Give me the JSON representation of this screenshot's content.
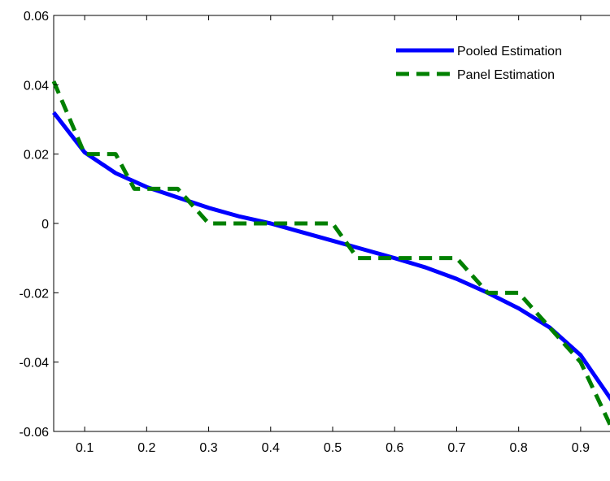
{
  "chart_data": {
    "type": "line",
    "title": "",
    "xlabel": "",
    "ylabel": "",
    "xlim": [
      0.05,
      0.95
    ],
    "ylim": [
      -0.06,
      0.06
    ],
    "x_ticks": [
      0.1,
      0.2,
      0.3,
      0.4,
      0.5,
      0.6,
      0.7,
      0.8,
      0.9
    ],
    "x_tick_labels": [
      "0.1",
      "0.2",
      "0.3",
      "0.4",
      "0.5",
      "0.6",
      "0.7",
      "0.8",
      "0.9"
    ],
    "y_ticks": [
      0.06,
      0.04,
      0.02,
      0,
      -0.02,
      -0.04,
      -0.06
    ],
    "y_tick_labels": [
      "0.06",
      "0.04",
      "0.02",
      "0",
      "-0.02",
      "-0.04",
      "-0.06"
    ],
    "grid": false,
    "legend_position": "top-right",
    "series": [
      {
        "name": "Pooled Estimation",
        "color": "#0000ff",
        "line_style": "solid",
        "x": [
          0.05,
          0.1,
          0.15,
          0.2,
          0.25,
          0.3,
          0.35,
          0.4,
          0.45,
          0.5,
          0.55,
          0.6,
          0.65,
          0.7,
          0.75,
          0.8,
          0.85,
          0.9,
          0.95
        ],
        "y": [
          0.032,
          0.0205,
          0.0145,
          0.0105,
          0.0075,
          0.0045,
          0.002,
          0.0,
          -0.0025,
          -0.005,
          -0.0075,
          -0.01,
          -0.0127,
          -0.016,
          -0.02,
          -0.0245,
          -0.03,
          -0.038,
          -0.051
        ]
      },
      {
        "name": "Panel Estimation",
        "color": "#008000",
        "line_style": "dashed",
        "x": [
          0.05,
          0.1,
          0.15,
          0.18,
          0.25,
          0.3,
          0.5,
          0.54,
          0.7,
          0.75,
          0.8,
          0.85,
          0.9,
          0.95
        ],
        "y": [
          0.041,
          0.02,
          0.02,
          0.01,
          0.01,
          0.0,
          0.0,
          -0.01,
          -0.01,
          -0.02,
          -0.02,
          -0.03,
          -0.04,
          -0.059
        ]
      }
    ]
  }
}
